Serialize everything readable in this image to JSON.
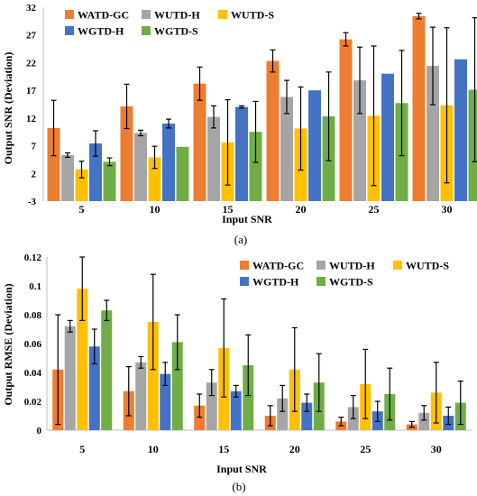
{
  "chart_data": [
    {
      "type": "bar",
      "caption": "(a)",
      "xlabel": "Input SNR",
      "ylabel": "Output SNR (Deviation)",
      "categories": [
        "5",
        "10",
        "15",
        "20",
        "25",
        "30"
      ],
      "ylim": [
        -3,
        32
      ],
      "yticks": [
        "-3",
        "2",
        "7",
        "12",
        "17",
        "22",
        "27",
        "32"
      ],
      "legend_position": "top-left",
      "series": [
        {
          "name": "WATD-GC",
          "color": "#ED7D31",
          "values": [
            10.2,
            14.1,
            18.2,
            22.3,
            26.2,
            30.4
          ],
          "err": [
            5.0,
            4.0,
            3.0,
            2.0,
            1.2,
            0.5
          ]
        },
        {
          "name": "WUTD-H",
          "color": "#A5A5A5",
          "values": [
            5.3,
            9.3,
            12.2,
            15.8,
            18.8,
            21.4
          ],
          "err": [
            0.4,
            0.5,
            2.0,
            3.0,
            6.0,
            7.0
          ]
        },
        {
          "name": "WUTD-S",
          "color": "#FFC000",
          "values": [
            2.7,
            4.9,
            7.6,
            10.1,
            12.4,
            14.3
          ],
          "err": [
            1.5,
            2.0,
            7.7,
            7.5,
            12.6,
            14.0
          ]
        },
        {
          "name": "WGTD-H",
          "color": "#4472C4",
          "values": [
            7.4,
            11.0,
            14.0,
            17.0,
            20.0,
            22.6
          ],
          "err": [
            2.3,
            0.8,
            0.2,
            0.0,
            0.0,
            0.0
          ]
        },
        {
          "name": "WGTD-S",
          "color": "#70AD47",
          "values": [
            4.1,
            6.8,
            9.5,
            12.3,
            14.7,
            17.1
          ],
          "err": [
            0.7,
            0.0,
            5.5,
            8.0,
            9.5,
            13.0
          ]
        }
      ]
    },
    {
      "type": "bar",
      "caption": "(b)",
      "xlabel": "Input SNR",
      "ylabel": "Output RMSE (Deviation)",
      "categories": [
        "5",
        "10",
        "15",
        "20",
        "25",
        "30"
      ],
      "ylim": [
        0,
        0.12
      ],
      "yticks": [
        "0",
        "0.02",
        "0.04",
        "0.06",
        "0.08",
        "0.1",
        "0.12"
      ],
      "legend_position": "top-right",
      "series": [
        {
          "name": "WATD-GC",
          "color": "#ED7D31",
          "values": [
            0.042,
            0.027,
            0.017,
            0.01,
            0.006,
            0.004
          ],
          "err": [
            0.038,
            0.017,
            0.008,
            0.007,
            0.003,
            0.002
          ]
        },
        {
          "name": "WUTD-H",
          "color": "#A5A5A5",
          "values": [
            0.072,
            0.047,
            0.033,
            0.022,
            0.016,
            0.012
          ],
          "err": [
            0.004,
            0.004,
            0.009,
            0.009,
            0.008,
            0.005
          ]
        },
        {
          "name": "WUTD-S",
          "color": "#FFC000",
          "values": [
            0.098,
            0.075,
            0.057,
            0.042,
            0.032,
            0.026
          ],
          "err": [
            0.022,
            0.033,
            0.034,
            0.029,
            0.024,
            0.021
          ]
        },
        {
          "name": "WGTD-H",
          "color": "#4472C4",
          "values": [
            0.058,
            0.039,
            0.027,
            0.019,
            0.013,
            0.01
          ],
          "err": [
            0.012,
            0.008,
            0.004,
            0.006,
            0.007,
            0.006
          ]
        },
        {
          "name": "WGTD-S",
          "color": "#70AD47",
          "values": [
            0.083,
            0.061,
            0.045,
            0.033,
            0.025,
            0.019
          ],
          "err": [
            0.007,
            0.019,
            0.021,
            0.02,
            0.018,
            0.015
          ]
        }
      ]
    }
  ]
}
